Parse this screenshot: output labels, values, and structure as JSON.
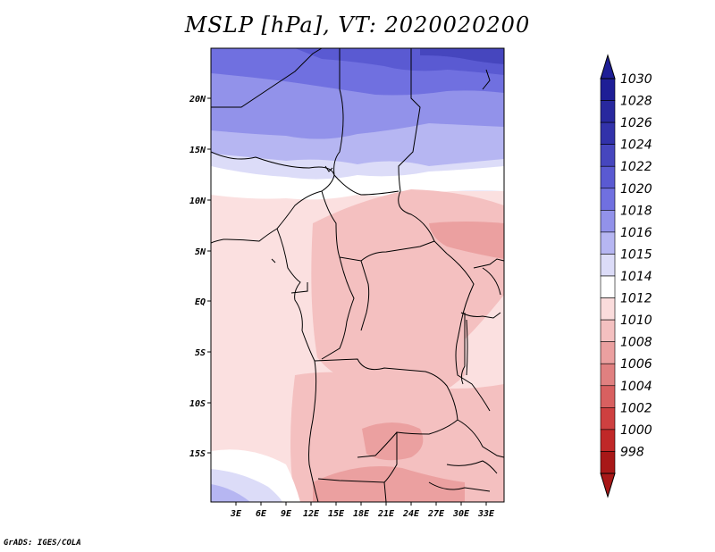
{
  "title": "MSLP [hPa], VT: 2020020200",
  "credit": "GrADS: IGES/COLA",
  "map": {
    "lon_range": [
      0,
      35
    ],
    "lat_range": [
      -20,
      25
    ],
    "x_ticks": [
      "3E",
      "6E",
      "9E",
      "12E",
      "15E",
      "18E",
      "21E",
      "24E",
      "27E",
      "30E",
      "33E"
    ],
    "y_ticks": [
      "20N",
      "15N",
      "10N",
      "5N",
      "EQ",
      "5S",
      "10S",
      "15S"
    ]
  },
  "colorbar": {
    "levels": [
      "1030",
      "1028",
      "1026",
      "1024",
      "1022",
      "1020",
      "1018",
      "1016",
      "1015",
      "1014",
      "1012",
      "1010",
      "1008",
      "1006",
      "1004",
      "1002",
      "1000",
      "998"
    ],
    "colors": [
      "#1e1e96",
      "#28289e",
      "#3232aa",
      "#4646be",
      "#5a5ad2",
      "#7070e0",
      "#9292ea",
      "#b6b6f2",
      "#dcdcf8",
      "#ffffff",
      "#fadcdc",
      "#f4c0c0",
      "#eba0a0",
      "#e08080",
      "#d86060",
      "#ce4040",
      "#c02828",
      "#a81818"
    ]
  }
}
